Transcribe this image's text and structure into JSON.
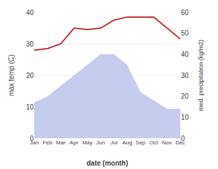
{
  "chart_data": {
    "type": "line",
    "categories": [
      "Jan",
      "Feb",
      "Mar",
      "Apr",
      "May",
      "Jun",
      "Jul",
      "Aug",
      "Sep",
      "Oct",
      "Nov",
      "Dec"
    ],
    "series": [
      {
        "type": "area",
        "color": "#c5ccee",
        "axis": "y2",
        "values": [
          17,
          20,
          25,
          30,
          35,
          40,
          40,
          35,
          22,
          18,
          14,
          14
        ]
      },
      {
        "type": "line",
        "color": "#cc3333",
        "values": [
          28,
          28.5,
          30,
          35,
          34.5,
          35,
          37.5,
          38.5,
          38.5,
          38.5,
          35,
          31.5
        ]
      }
    ],
    "xlabel": "date (month)",
    "ylabel": "max temp (C)",
    "y2label": "med. precipitation (kg/m2)",
    "ylim": [
      0,
      40
    ],
    "yticks": [
      0,
      10,
      20,
      30,
      40
    ],
    "y2lim": [
      0,
      60
    ],
    "y2ticks": [
      0,
      10,
      20,
      30,
      40,
      50,
      60
    ],
    "grid": true
  }
}
